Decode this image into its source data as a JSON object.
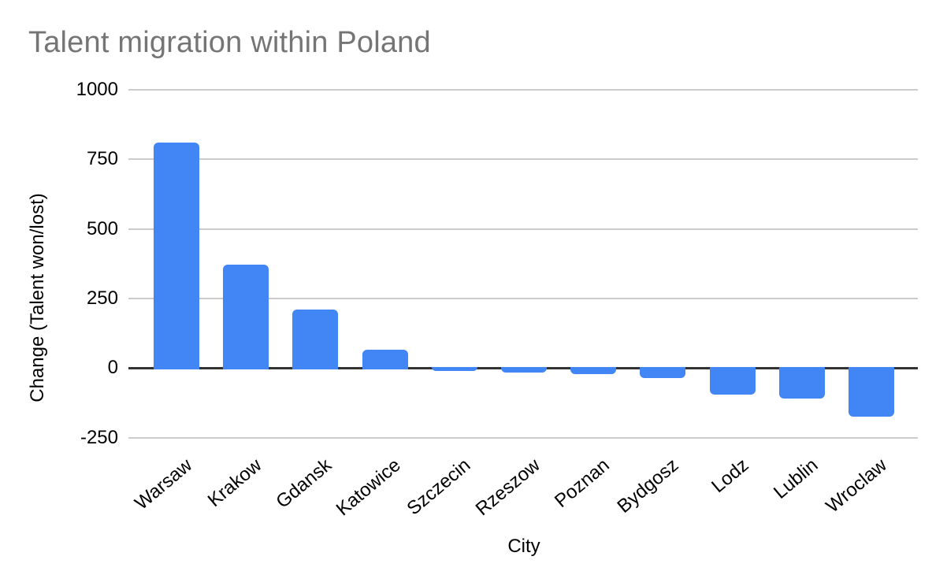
{
  "title": "Talent migration within Poland",
  "colors": {
    "background": "#ffffff",
    "bar": "#4285f4",
    "title_text": "#757575",
    "axis_text": "#000000",
    "gridline": "#cccccc",
    "zero_line": "#333333"
  },
  "chart_data": {
    "type": "bar",
    "title": "Talent migration within Poland",
    "xlabel": "City",
    "ylabel": "Change (Talent won/lost)",
    "categories": [
      "Warsaw",
      "Krakow",
      "Gdansk",
      "Katowice",
      "Szczecin",
      "Rzeszow",
      "Poznan",
      "Bydgosz",
      "Lodz",
      "Lublin",
      "Wroclaw"
    ],
    "values": [
      805,
      367,
      206,
      62,
      -5,
      -12,
      -18,
      -30,
      -90,
      -106,
      -170
    ],
    "yticks": [
      1000,
      750,
      500,
      250,
      0,
      -250
    ],
    "ylim": [
      -250,
      1000
    ],
    "grid": true,
    "legend": "none",
    "bar_color": "#4285f4"
  }
}
